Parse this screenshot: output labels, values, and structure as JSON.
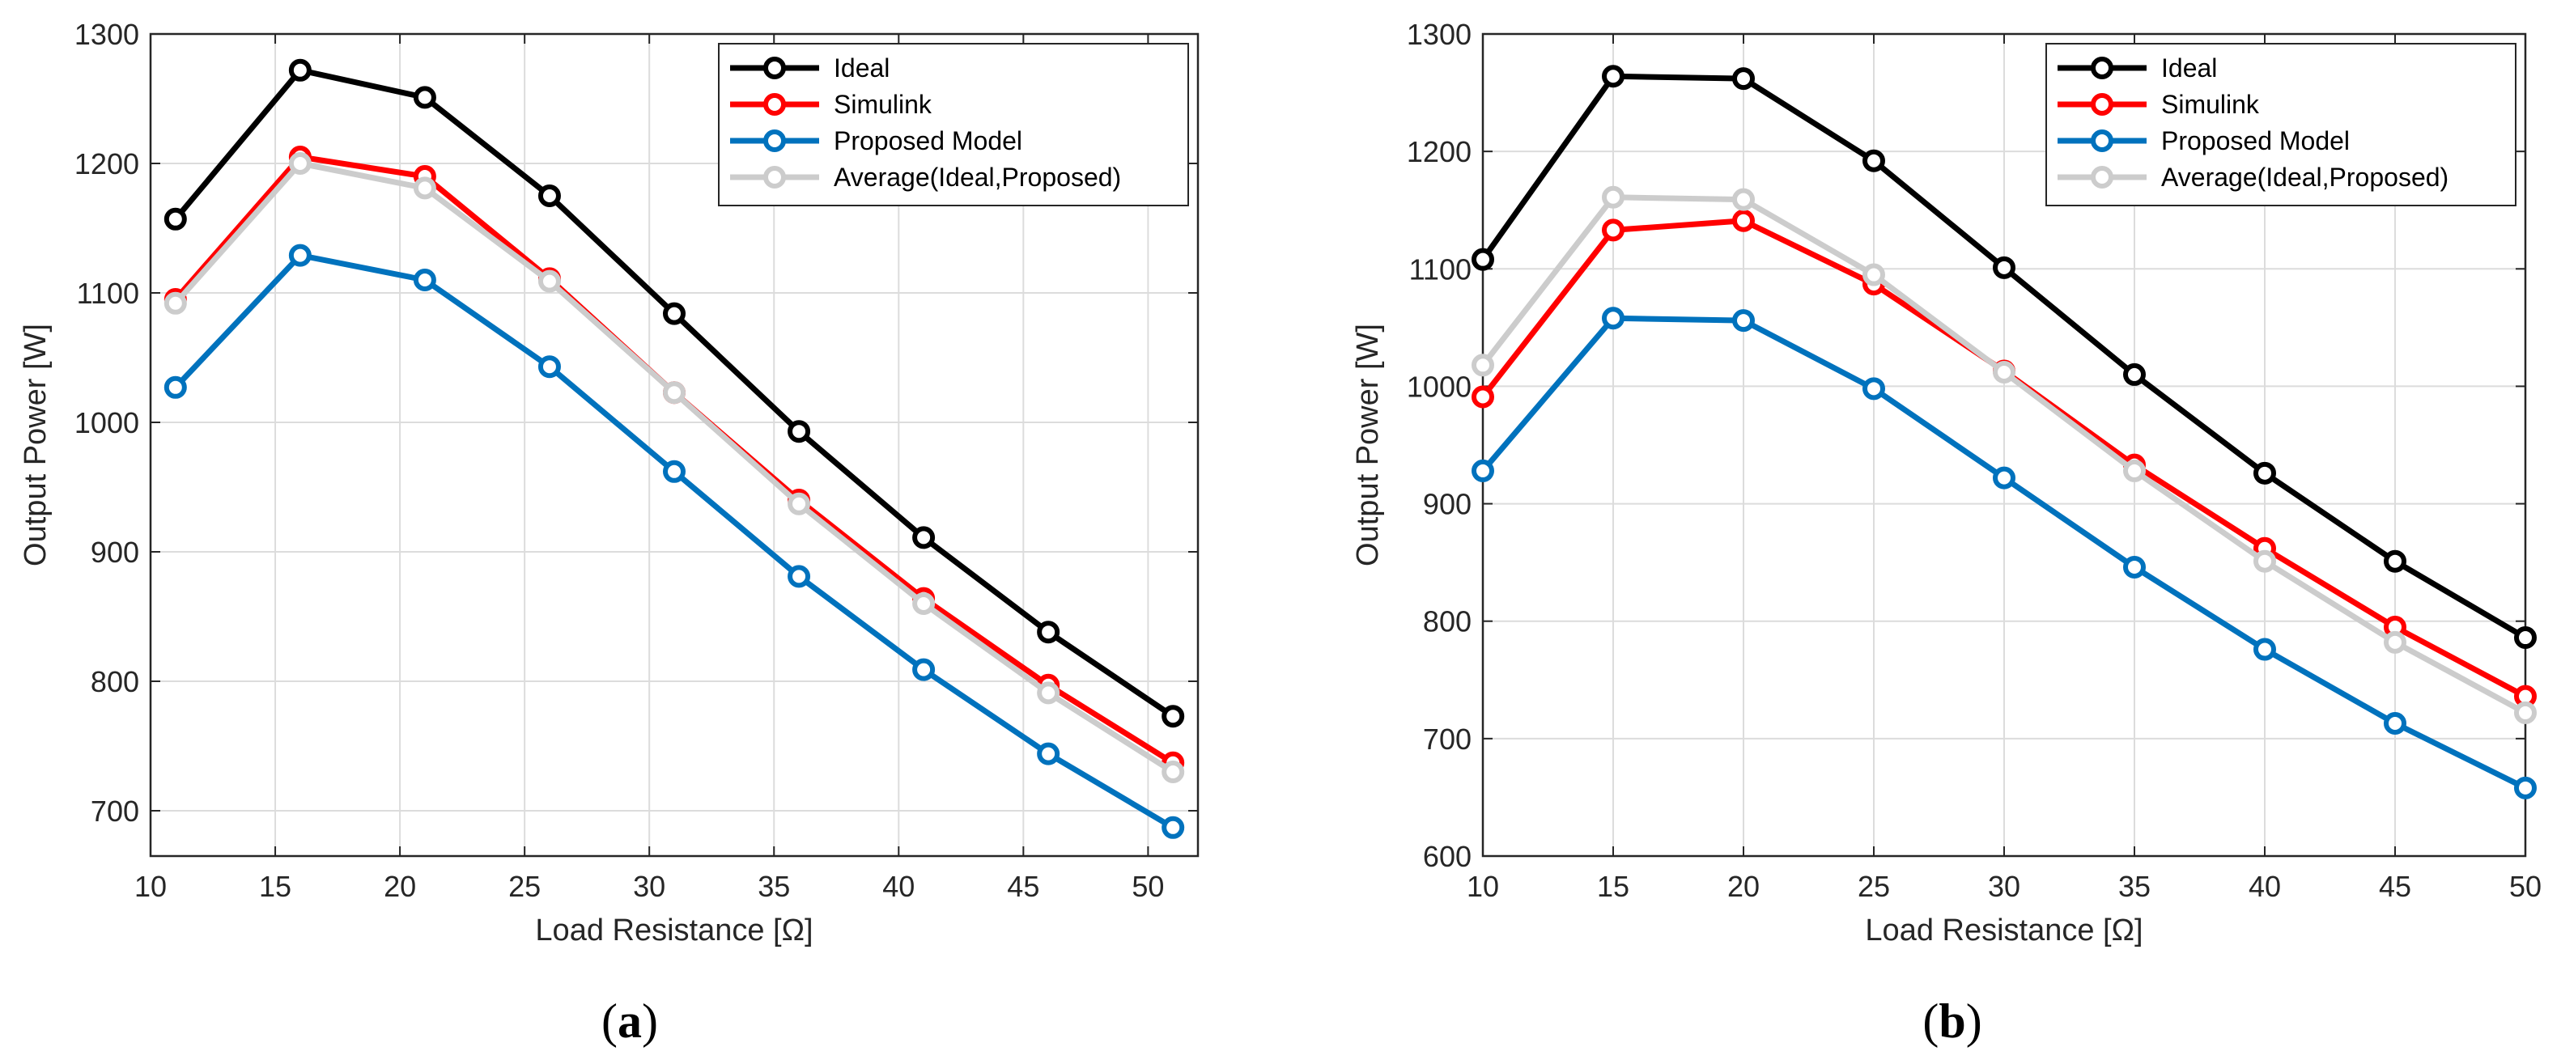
{
  "chart_data": [
    {
      "type": "line",
      "caption_open": "(",
      "caption_letter": "a",
      "caption_close": ")",
      "xlabel": "Load Resistance [Ω]",
      "ylabel": "Output Power [W]",
      "xlim": [
        10,
        52
      ],
      "ylim": [
        665,
        1300
      ],
      "xticks": [
        10,
        15,
        20,
        25,
        30,
        35,
        40,
        45,
        50
      ],
      "yticks": [
        700,
        800,
        900,
        1000,
        1100,
        1200,
        1300
      ],
      "grid": true,
      "legend_position": "top-right",
      "x": [
        11,
        16,
        21,
        26,
        31,
        36,
        41,
        46,
        51
      ],
      "series": [
        {
          "name": "Ideal",
          "color": "#000000",
          "values": [
            1157,
            1272,
            1251,
            1175,
            1084,
            993,
            911,
            838,
            773
          ]
        },
        {
          "name": "Simulink",
          "color": "#ff0000",
          "values": [
            1095,
            1205,
            1190,
            1111,
            1023,
            940,
            864,
            797,
            737
          ]
        },
        {
          "name": "Proposed Model",
          "color": "#0072bd",
          "values": [
            1027,
            1129,
            1110,
            1043,
            962,
            881,
            809,
            744,
            687
          ]
        },
        {
          "name": "Average(Ideal,Proposed)",
          "color": "#cccccc",
          "values": [
            1092,
            1200,
            1181,
            1109,
            1023,
            937,
            860,
            791,
            730
          ]
        }
      ]
    },
    {
      "type": "line",
      "caption_open": "(",
      "caption_letter": "b",
      "caption_close": ")",
      "xlabel": "Load Resistance [Ω]",
      "ylabel": "Output Power [W]",
      "xlim": [
        10,
        50
      ],
      "ylim": [
        600,
        1300
      ],
      "xticks": [
        10,
        15,
        20,
        25,
        30,
        35,
        40,
        45,
        50
      ],
      "yticks": [
        600,
        700,
        800,
        900,
        1000,
        1100,
        1200,
        1300
      ],
      "grid": true,
      "legend_position": "top-right",
      "x": [
        10,
        15,
        20,
        25,
        30,
        35,
        40,
        45,
        50
      ],
      "series": [
        {
          "name": "Ideal",
          "color": "#000000",
          "values": [
            1108,
            1264,
            1262,
            1192,
            1101,
            1010,
            926,
            851,
            786
          ]
        },
        {
          "name": "Simulink",
          "color": "#ff0000",
          "values": [
            991,
            1133,
            1141,
            1087,
            1013,
            933,
            862,
            795,
            736
          ]
        },
        {
          "name": "Proposed Model",
          "color": "#0072bd",
          "values": [
            928,
            1058,
            1056,
            998,
            922,
            846,
            776,
            713,
            658
          ]
        },
        {
          "name": "Average(Ideal,Proposed)",
          "color": "#cccccc",
          "values": [
            1018,
            1161,
            1159,
            1095,
            1012,
            928,
            851,
            782,
            722
          ]
        }
      ]
    }
  ]
}
